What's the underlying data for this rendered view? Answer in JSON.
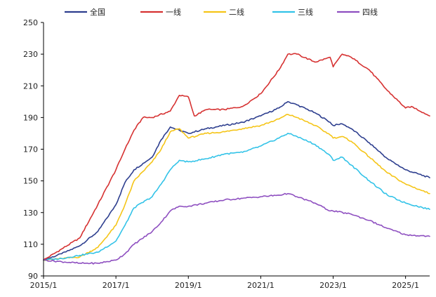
{
  "chart_data": {
    "type": "line",
    "title": "",
    "xlabel": "",
    "ylabel": "",
    "ylim": [
      90,
      250
    ],
    "yticks": [
      90,
      110,
      130,
      150,
      170,
      190,
      210,
      230,
      250
    ],
    "xlim": [
      "2015-01",
      "2025-09"
    ],
    "xticks": [
      "2015/1",
      "2017/1",
      "2019/1",
      "2021/1",
      "2023/1",
      "2025/1"
    ],
    "legend_position": "top",
    "grid": false,
    "series": [
      {
        "name": "全国",
        "color": "#2e3f8f",
        "points": [
          [
            "2015-01",
            100
          ],
          [
            "2015-07",
            104
          ],
          [
            "2016-01",
            109
          ],
          [
            "2016-07",
            118
          ],
          [
            "2017-01",
            135
          ],
          [
            "2017-04",
            149
          ],
          [
            "2017-07",
            157
          ],
          [
            "2018-01",
            165
          ],
          [
            "2018-04",
            176
          ],
          [
            "2018-07",
            184
          ],
          [
            "2018-10",
            182
          ],
          [
            "2019-01",
            180
          ],
          [
            "2019-07",
            183
          ],
          [
            "2020-01",
            185
          ],
          [
            "2020-07",
            187
          ],
          [
            "2021-01",
            191
          ],
          [
            "2021-07",
            196
          ],
          [
            "2021-10",
            200
          ],
          [
            "2022-01",
            198
          ],
          [
            "2022-07",
            193
          ],
          [
            "2022-12",
            187
          ],
          [
            "2023-01",
            185
          ],
          [
            "2023-04",
            186
          ],
          [
            "2023-07",
            183
          ],
          [
            "2024-01",
            174
          ],
          [
            "2024-07",
            164
          ],
          [
            "2025-01",
            157
          ],
          [
            "2025-09",
            152
          ]
        ]
      },
      {
        "name": "一线",
        "color": "#d63232",
        "points": [
          [
            "2015-01",
            100
          ],
          [
            "2015-07",
            107
          ],
          [
            "2016-01",
            114
          ],
          [
            "2016-07",
            135
          ],
          [
            "2017-01",
            157
          ],
          [
            "2017-04",
            170
          ],
          [
            "2017-07",
            182
          ],
          [
            "2017-10",
            190
          ],
          [
            "2018-01",
            190
          ],
          [
            "2018-07",
            194
          ],
          [
            "2018-10",
            204
          ],
          [
            "2019-01",
            203
          ],
          [
            "2019-03",
            191
          ],
          [
            "2019-07",
            195
          ],
          [
            "2020-01",
            195
          ],
          [
            "2020-07",
            197
          ],
          [
            "2021-01",
            205
          ],
          [
            "2021-07",
            220
          ],
          [
            "2021-10",
            230
          ],
          [
            "2022-01",
            230
          ],
          [
            "2022-07",
            225
          ],
          [
            "2022-12",
            228
          ],
          [
            "2023-01",
            222
          ],
          [
            "2023-04",
            230
          ],
          [
            "2023-07",
            228
          ],
          [
            "2024-01",
            220
          ],
          [
            "2024-07",
            207
          ],
          [
            "2025-01",
            196
          ],
          [
            "2025-03",
            197
          ],
          [
            "2025-09",
            191
          ]
        ]
      },
      {
        "name": "二线",
        "color": "#f5c518",
        "points": [
          [
            "2015-01",
            100
          ],
          [
            "2015-07",
            101
          ],
          [
            "2016-01",
            102
          ],
          [
            "2016-07",
            108
          ],
          [
            "2017-01",
            122
          ],
          [
            "2017-04",
            135
          ],
          [
            "2017-07",
            150
          ],
          [
            "2018-01",
            162
          ],
          [
            "2018-04",
            170
          ],
          [
            "2018-07",
            181
          ],
          [
            "2018-10",
            183
          ],
          [
            "2019-01",
            177
          ],
          [
            "2019-07",
            180
          ],
          [
            "2020-01",
            181
          ],
          [
            "2020-07",
            183
          ],
          [
            "2021-01",
            185
          ],
          [
            "2021-07",
            189
          ],
          [
            "2021-10",
            192
          ],
          [
            "2022-01",
            190
          ],
          [
            "2022-07",
            185
          ],
          [
            "2022-12",
            179
          ],
          [
            "2023-01",
            177
          ],
          [
            "2023-04",
            178
          ],
          [
            "2023-07",
            175
          ],
          [
            "2024-01",
            165
          ],
          [
            "2024-07",
            155
          ],
          [
            "2025-01",
            148
          ],
          [
            "2025-09",
            142
          ]
        ]
      },
      {
        "name": "三线",
        "color": "#33c3e8",
        "points": [
          [
            "2015-01",
            100
          ],
          [
            "2015-07",
            101
          ],
          [
            "2016-01",
            103
          ],
          [
            "2016-07",
            105
          ],
          [
            "2017-01",
            112
          ],
          [
            "2017-04",
            122
          ],
          [
            "2017-07",
            133
          ],
          [
            "2018-01",
            140
          ],
          [
            "2018-04",
            148
          ],
          [
            "2018-07",
            157
          ],
          [
            "2018-10",
            163
          ],
          [
            "2019-01",
            162
          ],
          [
            "2019-07",
            164
          ],
          [
            "2020-01",
            167
          ],
          [
            "2020-07",
            168
          ],
          [
            "2021-01",
            172
          ],
          [
            "2021-07",
            177
          ],
          [
            "2021-10",
            180
          ],
          [
            "2022-01",
            178
          ],
          [
            "2022-07",
            173
          ],
          [
            "2022-12",
            166
          ],
          [
            "2023-01",
            163
          ],
          [
            "2023-04",
            165
          ],
          [
            "2023-07",
            160
          ],
          [
            "2024-01",
            150
          ],
          [
            "2024-07",
            141
          ],
          [
            "2025-01",
            136
          ],
          [
            "2025-09",
            132
          ]
        ]
      },
      {
        "name": "四线",
        "color": "#8e4fc0",
        "points": [
          [
            "2015-01",
            100
          ],
          [
            "2015-07",
            99
          ],
          [
            "2016-01",
            98
          ],
          [
            "2016-07",
            98
          ],
          [
            "2017-01",
            100
          ],
          [
            "2017-04",
            104
          ],
          [
            "2017-07",
            110
          ],
          [
            "2018-01",
            118
          ],
          [
            "2018-04",
            124
          ],
          [
            "2018-07",
            131
          ],
          [
            "2018-10",
            134
          ],
          [
            "2019-01",
            134
          ],
          [
            "2019-07",
            136
          ],
          [
            "2020-01",
            138
          ],
          [
            "2020-07",
            139
          ],
          [
            "2021-01",
            140
          ],
          [
            "2021-07",
            141
          ],
          [
            "2021-10",
            142
          ],
          [
            "2022-01",
            140
          ],
          [
            "2022-07",
            136
          ],
          [
            "2022-12",
            131
          ],
          [
            "2023-01",
            131
          ],
          [
            "2023-07",
            129
          ],
          [
            "2024-01",
            125
          ],
          [
            "2024-07",
            120
          ],
          [
            "2025-01",
            116
          ],
          [
            "2025-09",
            115
          ]
        ]
      }
    ]
  }
}
